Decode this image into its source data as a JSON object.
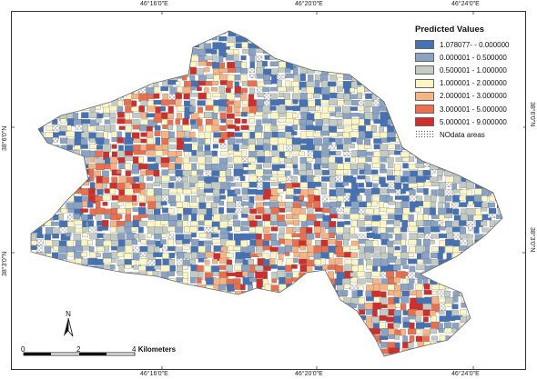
{
  "legend": {
    "title": "Predicted Values",
    "items": [
      {
        "label": "1.078077- - 0.000000",
        "color": "#4672b4"
      },
      {
        "label": "0.000001 - 0.500000",
        "color": "#8aa3c3"
      },
      {
        "label": "0.500001 - 1.000000",
        "color": "#c3cbc2"
      },
      {
        "label": "1.000001 - 2.000000",
        "color": "#fbf6c4"
      },
      {
        "label": "2.000001 - 3.000000",
        "color": "#f6b383"
      },
      {
        "label": "3.000001 - 5.000000",
        "color": "#e8704f"
      },
      {
        "label": "5.000001 - 9.000000",
        "color": "#cf2f2b"
      },
      {
        "label": "NOdata areas",
        "color": "#ffffff"
      }
    ]
  },
  "graticule": {
    "top_labels": [
      "46°16'0\"E",
      "46°20'0\"E",
      "46°24'0\"E"
    ],
    "bottom_labels": [
      "46°16'0\"E",
      "46°20'0\"E",
      "46°24'0\"E"
    ],
    "left_labels": [
      "38°6'0\"N",
      "38°3'0\"N"
    ],
    "right_labels": [
      "38°6'0\"N",
      "38°3'0\"N"
    ]
  },
  "scale_bar": {
    "labels": [
      "0",
      "2",
      "4"
    ],
    "unit": "Kilometers"
  },
  "north_arrow": {
    "letter": "N"
  }
}
